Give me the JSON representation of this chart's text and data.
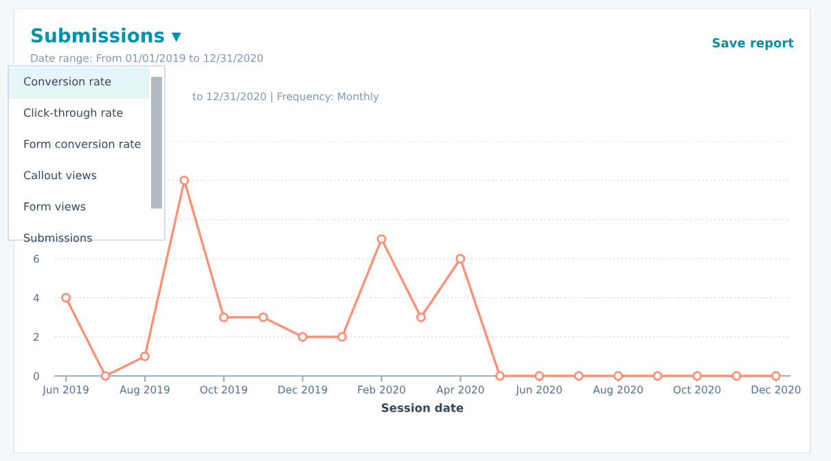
{
  "chart_data": {
    "type": "line",
    "title": "Submissions ▾",
    "subtitle": "Date range: From 01/01/2019 to 12/31/2020",
    "xlabel": "Session date",
    "categories": [
      "Jun 2019",
      null,
      "Aug 2019",
      null,
      "Oct 2019",
      null,
      "Dec 2019",
      null,
      "Feb 2020",
      null,
      "Apr 2020",
      null,
      "Jun 2020",
      null,
      "Aug 2020",
      null,
      "Oct 2020",
      null,
      "Dec 2020"
    ],
    "series": [
      {
        "color": "#ff8f73",
        "values": [
          4,
          0,
          1,
          10,
          3,
          3,
          2,
          2,
          7,
          3,
          6,
          0,
          0,
          0,
          0,
          0,
          0,
          0,
          0
        ]
      }
    ],
    "ylim": [
      0,
      12
    ],
    "yticks": [
      0,
      2,
      4,
      6,
      {
        "value": 8,
        "label": null
      },
      {
        "value": 10,
        "label": null
      },
      {
        "value": 12,
        "label": null
      }
    ],
    "grid": "y",
    "marker": "circle",
    "line_style": "solid",
    "annotations": [
      "Save report",
      "to 12/31/2020 | Frequency: Monthly",
      "Conversion rate",
      "Click-through rate",
      "Form conversion rate",
      "Callout views",
      "Form views",
      "Submissions"
    ]
  }
}
